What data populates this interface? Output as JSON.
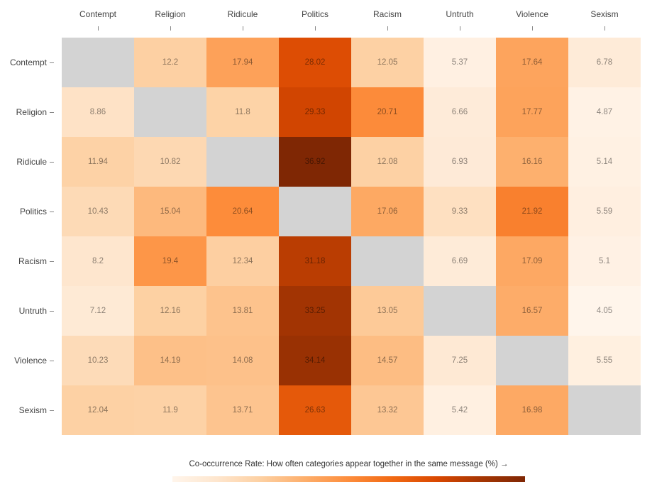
{
  "chart_data": {
    "type": "heatmap",
    "categories": [
      "Contempt",
      "Religion",
      "Ridicule",
      "Politics",
      "Racism",
      "Untruth",
      "Violence",
      "Sexism"
    ],
    "matrix": [
      [
        null,
        12.2,
        17.94,
        28.02,
        12.05,
        5.37,
        17.64,
        6.78
      ],
      [
        8.86,
        null,
        11.8,
        29.33,
        20.71,
        6.66,
        17.77,
        4.87
      ],
      [
        11.94,
        10.82,
        null,
        36.92,
        12.08,
        6.93,
        16.16,
        5.14
      ],
      [
        10.43,
        15.04,
        20.64,
        null,
        17.06,
        9.33,
        21.92,
        5.59
      ],
      [
        8.2,
        19.4,
        12.34,
        31.18,
        null,
        6.69,
        17.09,
        5.1
      ],
      [
        7.12,
        12.16,
        13.81,
        33.25,
        13.05,
        null,
        16.57,
        4.05
      ],
      [
        10.23,
        14.19,
        14.08,
        34.14,
        14.57,
        7.25,
        null,
        5.55
      ],
      [
        12.04,
        11.9,
        13.71,
        26.63,
        13.32,
        5.42,
        16.98,
        null
      ]
    ],
    "colorbar_label": "Co-occurrence Rate: How often categories appear together in the same message (%) →",
    "color_scale": {
      "name": "Oranges",
      "min": 4.05,
      "max": 36.92,
      "stops": [
        {
          "pos": 0.0,
          "color": "#fff5eb"
        },
        {
          "pos": 0.125,
          "color": "#fee6ce"
        },
        {
          "pos": 0.25,
          "color": "#fdd0a2"
        },
        {
          "pos": 0.375,
          "color": "#fdae6b"
        },
        {
          "pos": 0.5,
          "color": "#fd8d3c"
        },
        {
          "pos": 0.625,
          "color": "#f16913"
        },
        {
          "pos": 0.75,
          "color": "#d94801"
        },
        {
          "pos": 0.875,
          "color": "#a63603"
        },
        {
          "pos": 1.0,
          "color": "#7f2704"
        }
      ]
    },
    "diagonal_color": "#d3d3d3",
    "cell_text_color": "rgba(0,0,0,0.45)",
    "axis_text_color": "#444444",
    "legend_position": "bottom"
  }
}
